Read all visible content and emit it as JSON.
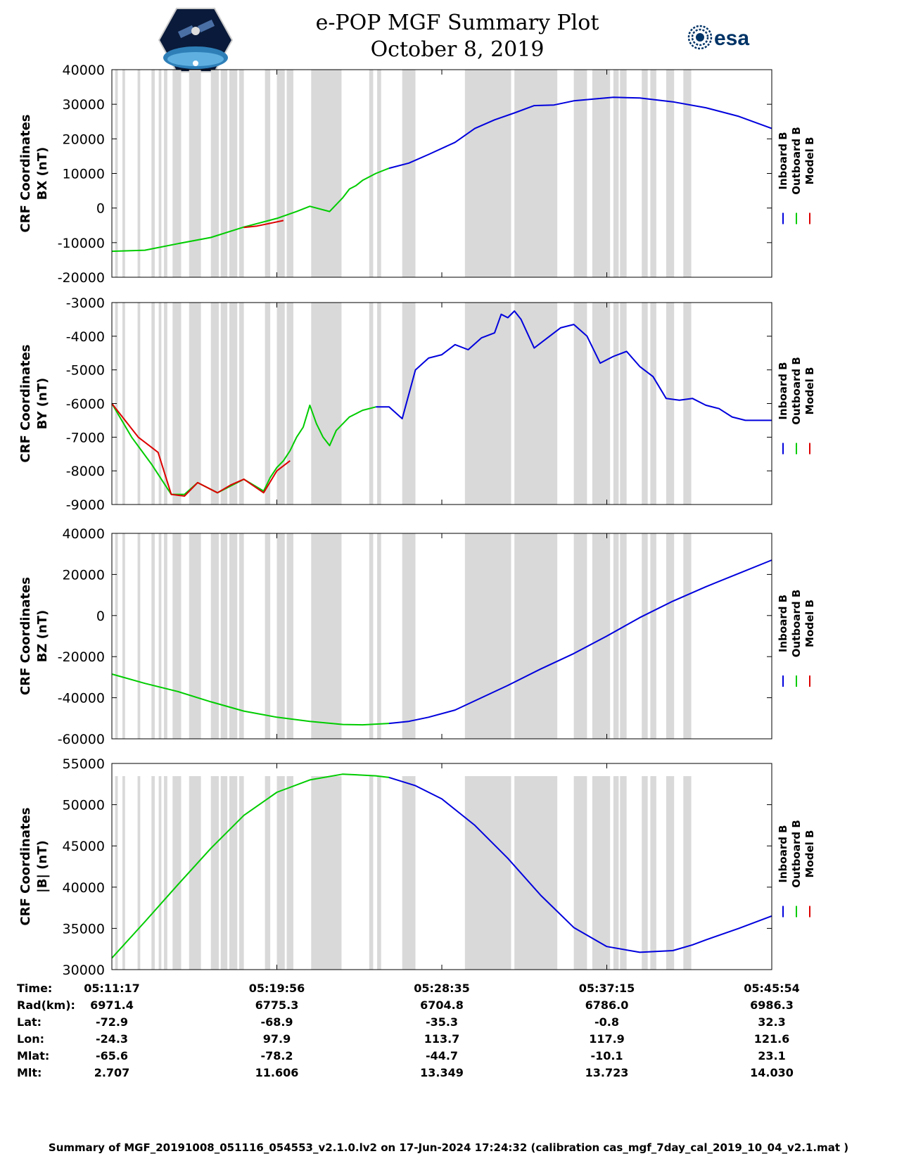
{
  "title": {
    "line1": "e-POP MGF Summary Plot",
    "line2": "October 8, 2019"
  },
  "logos": {
    "mission": "cassiope-satellite-logo",
    "agency_text": "esa",
    "agency_icon": "esa-swirl-icon"
  },
  "colors": {
    "inboard": "#0000dd",
    "outboard": "#00cc00",
    "model": "#dd0000",
    "gap_shading": "#d9d9d9",
    "axis": "#000000"
  },
  "chart_data": [
    {
      "type": "line",
      "id": "bx",
      "ylabel_line1": "CRF Coordinates",
      "ylabel_line2": "BX (nT)",
      "ylim": [
        -20000,
        40000
      ],
      "yticks": [
        "40000",
        "30000",
        "20000",
        "10000",
        "0",
        "-10000",
        "-20000"
      ],
      "ytick_values": [
        40000,
        30000,
        20000,
        10000,
        0,
        -10000,
        -20000
      ],
      "legend": [
        "Inboard B",
        "Outboard B",
        "Model B"
      ],
      "series": [
        {
          "name": "Outboard B",
          "color_key": "outboard",
          "x": [
            0,
            0.05,
            0.1,
            0.15,
            0.2,
            0.25,
            0.28,
            0.3,
            0.33,
            0.35,
            0.36,
            0.37,
            0.38,
            0.4,
            0.42
          ],
          "y": [
            -12500,
            -12200,
            -10300,
            -8500,
            -5500,
            -3000,
            -1000,
            500,
            -1000,
            3000,
            5500,
            6500,
            8000,
            10000,
            11500
          ]
        },
        {
          "name": "Model B",
          "color_key": "model",
          "x": [
            0.2,
            0.22,
            0.24,
            0.26
          ],
          "y": [
            -5600,
            -5200,
            -4400,
            -3600
          ]
        },
        {
          "name": "Inboard B",
          "color_key": "inboard",
          "x": [
            0.42,
            0.45,
            0.48,
            0.52,
            0.55,
            0.58,
            0.61,
            0.64,
            0.67,
            0.7,
            0.73,
            0.76,
            0.8,
            0.85,
            0.9,
            0.95,
            1.0
          ],
          "y": [
            11500,
            13000,
            15500,
            19000,
            23000,
            25500,
            27500,
            29600,
            29800,
            31000,
            31500,
            32000,
            31800,
            30700,
            29000,
            26500,
            23000
          ]
        }
      ]
    },
    {
      "type": "line",
      "id": "by",
      "ylabel_line1": "CRF Coordinates",
      "ylabel_line2": "BY (nT)",
      "ylim": [
        -9000,
        -3000
      ],
      "yticks": [
        "-3000",
        "-4000",
        "-5000",
        "-6000",
        "-7000",
        "-8000",
        "-9000"
      ],
      "ytick_values": [
        -3000,
        -4000,
        -5000,
        -6000,
        -7000,
        -8000,
        -9000
      ],
      "legend": [
        "Inboard B",
        "Outboard B",
        "Model B"
      ],
      "series": [
        {
          "name": "Outboard B",
          "color_key": "outboard",
          "x": [
            0,
            0.03,
            0.06,
            0.09,
            0.11,
            0.13,
            0.16,
            0.18,
            0.2,
            0.23,
            0.24,
            0.25,
            0.26,
            0.27,
            0.28,
            0.29,
            0.3,
            0.31,
            0.32,
            0.33,
            0.34,
            0.36,
            0.38,
            0.4
          ],
          "y": [
            -6000,
            -7000,
            -7800,
            -8700,
            -8700,
            -8350,
            -8650,
            -8450,
            -8250,
            -8600,
            -8200,
            -7900,
            -7700,
            -7400,
            -7000,
            -6700,
            -6050,
            -6600,
            -7000,
            -7250,
            -6800,
            -6400,
            -6200,
            -6100
          ]
        },
        {
          "name": "Model B",
          "color_key": "model",
          "x": [
            0.0,
            0.04,
            0.07,
            0.09,
            0.11,
            0.13,
            0.16,
            0.18,
            0.2,
            0.23,
            0.25,
            0.27
          ],
          "y": [
            -6000,
            -7000,
            -7450,
            -8700,
            -8750,
            -8350,
            -8650,
            -8420,
            -8250,
            -8650,
            -8000,
            -7700
          ]
        },
        {
          "name": "Inboard B",
          "color_key": "inboard",
          "x": [
            0.4,
            0.42,
            0.44,
            0.46,
            0.48,
            0.5,
            0.52,
            0.54,
            0.56,
            0.58,
            0.59,
            0.6,
            0.61,
            0.62,
            0.64,
            0.66,
            0.68,
            0.7,
            0.72,
            0.74,
            0.76,
            0.78,
            0.8,
            0.82,
            0.84,
            0.86,
            0.88,
            0.9,
            0.92,
            0.94,
            0.96,
            0.98,
            1.0
          ],
          "y": [
            -6100,
            -6100,
            -6450,
            -5000,
            -4650,
            -4550,
            -4250,
            -4400,
            -4050,
            -3900,
            -3350,
            -3450,
            -3250,
            -3500,
            -4350,
            -4050,
            -3750,
            -3650,
            -4000,
            -4800,
            -4600,
            -4450,
            -4900,
            -5200,
            -5850,
            -5900,
            -5850,
            -6050,
            -6150,
            -6400,
            -6500,
            -6500,
            -6500
          ]
        }
      ]
    },
    {
      "type": "line",
      "id": "bz",
      "ylabel_line1": "CRF Coordinates",
      "ylabel_line2": "BZ (nT)",
      "ylim": [
        -60000,
        40000
      ],
      "yticks": [
        "40000",
        "20000",
        "0",
        "-20000",
        "-40000",
        "-60000"
      ],
      "ytick_values": [
        40000,
        20000,
        0,
        -20000,
        -40000,
        -60000
      ],
      "legend": [
        "Inboard B",
        "Outboard B",
        "Model B"
      ],
      "series": [
        {
          "name": "Outboard B",
          "color_key": "outboard",
          "x": [
            0,
            0.05,
            0.1,
            0.15,
            0.2,
            0.25,
            0.3,
            0.35,
            0.38,
            0.42
          ],
          "y": [
            -28500,
            -33000,
            -37000,
            -42000,
            -46500,
            -49500,
            -51500,
            -53000,
            -53200,
            -52500
          ]
        },
        {
          "name": "Inboard B",
          "color_key": "inboard",
          "x": [
            0.42,
            0.45,
            0.48,
            0.52,
            0.56,
            0.6,
            0.65,
            0.7,
            0.75,
            0.8,
            0.85,
            0.9,
            0.95,
            1.0
          ],
          "y": [
            -52500,
            -51500,
            -49500,
            -46000,
            -40000,
            -34000,
            -26000,
            -18500,
            -10000,
            -1000,
            7000,
            14000,
            20500,
            27000
          ]
        }
      ]
    },
    {
      "type": "line",
      "id": "bmag",
      "ylabel_line1": "CRF Coordinates",
      "ylabel_line2": "|B| (nT)",
      "ylim": [
        30000,
        55000
      ],
      "yticks": [
        "55000",
        "50000",
        "45000",
        "40000",
        "35000",
        "30000"
      ],
      "ytick_values": [
        55000,
        50000,
        45000,
        40000,
        35000,
        30000
      ],
      "legend": [
        "Inboard B",
        "Outboard B",
        "Model B"
      ],
      "series": [
        {
          "name": "Outboard B",
          "color_key": "outboard",
          "x": [
            0,
            0.05,
            0.1,
            0.15,
            0.2,
            0.25,
            0.3,
            0.35,
            0.4,
            0.42
          ],
          "y": [
            31400,
            35800,
            40300,
            44700,
            48700,
            51500,
            53000,
            53700,
            53500,
            53300
          ]
        },
        {
          "name": "Inboard B",
          "color_key": "inboard",
          "x": [
            0.42,
            0.46,
            0.5,
            0.55,
            0.6,
            0.65,
            0.7,
            0.75,
            0.8,
            0.85,
            0.88,
            0.9,
            0.95,
            1.0
          ],
          "y": [
            53300,
            52300,
            50700,
            47500,
            43500,
            39000,
            35100,
            32800,
            32100,
            32300,
            33000,
            33600,
            35000,
            36500
          ]
        }
      ]
    }
  ],
  "gap_intervals": [
    [
      0.005,
      0.009
    ],
    [
      0.016,
      0.02
    ],
    [
      0.039,
      0.043
    ],
    [
      0.06,
      0.065
    ],
    [
      0.071,
      0.075
    ],
    [
      0.079,
      0.084
    ],
    [
      0.092,
      0.105
    ],
    [
      0.117,
      0.135
    ],
    [
      0.15,
      0.162
    ],
    [
      0.165,
      0.175
    ],
    [
      0.178,
      0.19
    ],
    [
      0.193,
      0.2
    ],
    [
      0.232,
      0.24
    ],
    [
      0.25,
      0.262
    ],
    [
      0.265,
      0.275
    ],
    [
      0.302,
      0.348
    ],
    [
      0.39,
      0.396
    ],
    [
      0.402,
      0.408
    ],
    [
      0.44,
      0.46
    ],
    [
      0.535,
      0.605
    ],
    [
      0.61,
      0.675
    ],
    [
      0.7,
      0.72
    ],
    [
      0.728,
      0.755
    ],
    [
      0.76,
      0.768
    ],
    [
      0.77,
      0.78
    ],
    [
      0.803,
      0.812
    ],
    [
      0.816,
      0.825
    ],
    [
      0.84,
      0.852
    ],
    [
      0.866,
      0.878
    ],
    [
      0.9,
      0.9
    ],
    [
      0.84,
      0.84
    ]
  ],
  "x_ticks_frac": [
    0,
    0.25,
    0.5,
    0.75,
    1.0
  ],
  "footer": {
    "labels": [
      "Time:",
      "Rad(km):",
      "Lat:",
      "Lon:",
      "Mlat:",
      "Mlt:"
    ],
    "values": [
      [
        "05:11:17",
        "05:19:56",
        "05:28:35",
        "05:37:15",
        "05:45:54"
      ],
      [
        "6971.4",
        "6775.3",
        "6704.8",
        "6786.0",
        "6986.3"
      ],
      [
        "-72.9",
        "-68.9",
        "-35.3",
        "-0.8",
        "32.3"
      ],
      [
        "-24.3",
        "97.9",
        "113.7",
        "117.9",
        "121.6"
      ],
      [
        "-65.6",
        "-78.2",
        "-44.7",
        "-10.1",
        "23.1"
      ],
      [
        "2.707",
        "11.606",
        "13.349",
        "13.723",
        "14.030"
      ]
    ]
  },
  "summary": "Summary of MGF_20191008_051116_054553_v2.1.0.lv2 on 17-Jun-2024 17:24:32 (calibration cas_mgf_7day_cal_2019_10_04_v2.1.mat )"
}
